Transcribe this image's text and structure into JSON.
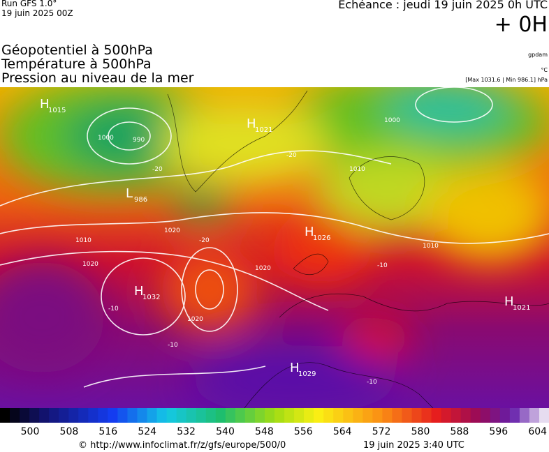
{
  "header": {
    "run": "Run GFS 1.0°",
    "run_date": "19 juin 2025 00Z",
    "echeance": "Echéance : jeudi 19 juin 2025 0h UTC",
    "offset": "+ 0H",
    "titles": [
      "Géopotentiel à 500hPa",
      "Température à 500hPa",
      "Pression au niveau de la mer"
    ],
    "units": [
      "gpdam",
      "°C"
    ],
    "extremes": "[Max 1031.6 | Min 986.1] hPa"
  },
  "map": {
    "centers": [
      {
        "letter": "H",
        "value": "1015"
      },
      {
        "letter": "H",
        "value": "1021"
      },
      {
        "letter": "L",
        "value": "986"
      },
      {
        "letter": "H",
        "value": "1026"
      },
      {
        "letter": "H",
        "value": "1032"
      },
      {
        "letter": "H",
        "value": "1021"
      },
      {
        "letter": "H",
        "value": "1029"
      }
    ],
    "contour_labels": [
      "990",
      "1000",
      "1010",
      "1020",
      "1020",
      "1020",
      "1020",
      "1000",
      "1010",
      "1010",
      "-20",
      "-20",
      "-20",
      "-10",
      "-10",
      "-10",
      "-10"
    ]
  },
  "colorbar": {
    "labels": [
      500,
      508,
      516,
      524,
      532,
      540,
      548,
      556,
      564,
      572,
      580,
      588,
      596,
      604
    ]
  },
  "footer": {
    "source": "© http://www.infoclimat.fr/z/gfs/europe/500/0",
    "issued": "19 juin 2025  3:40 UTC"
  }
}
